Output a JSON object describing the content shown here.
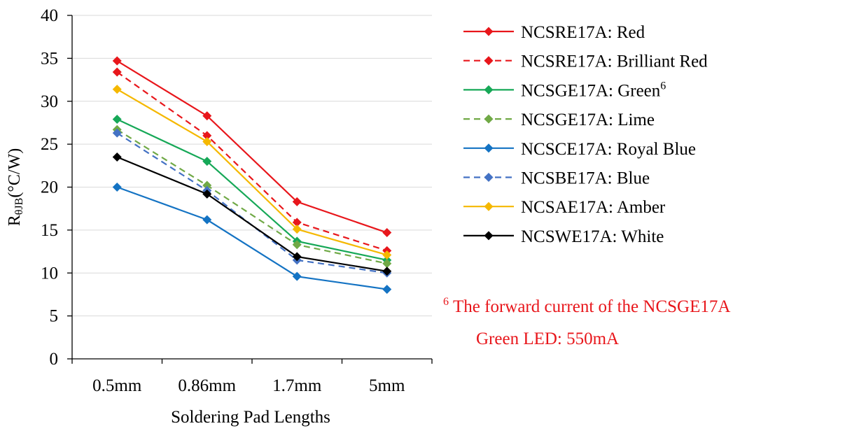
{
  "chart_data": {
    "type": "line",
    "xlabel": "Soldering Pad Lengths",
    "ylabel_main": "R",
    "ylabel_sub": "θJB",
    "ylabel_unit": "(°C/W)",
    "categories": [
      "0.5mm",
      "0.86mm",
      "1.7mm",
      "5mm"
    ],
    "ylim": [
      0,
      40
    ],
    "yticks": [
      0,
      5,
      10,
      15,
      20,
      25,
      30,
      35,
      40
    ],
    "grid": true,
    "legend_position": "right",
    "series": [
      {
        "name": "NCSRE17A: Red",
        "superscript": "",
        "color": "#e8161b",
        "dashed": false,
        "values": [
          34.7,
          28.3,
          18.3,
          14.7
        ]
      },
      {
        "name": "NCSRE17A: Brilliant Red",
        "superscript": "",
        "color": "#e8161b",
        "dashed": true,
        "values": [
          33.4,
          26.0,
          15.9,
          12.6
        ]
      },
      {
        "name": "NCSGE17A: Green",
        "superscript": "6",
        "color": "#16a857",
        "dashed": false,
        "values": [
          27.9,
          23.0,
          13.7,
          11.5
        ]
      },
      {
        "name": "NCSGE17A: Lime",
        "superscript": "",
        "color": "#70a946",
        "dashed": true,
        "values": [
          26.7,
          20.2,
          13.3,
          11.1
        ]
      },
      {
        "name": "NCSCE17A: Royal Blue",
        "superscript": "",
        "color": "#1473c3",
        "dashed": false,
        "values": [
          20.0,
          16.2,
          9.6,
          8.1
        ]
      },
      {
        "name": "NCSBE17A: Blue",
        "superscript": "",
        "color": "#4472c4",
        "dashed": true,
        "values": [
          26.3,
          19.6,
          11.5,
          10.0
        ]
      },
      {
        "name": "NCSAE17A: Amber",
        "superscript": "",
        "color": "#f5b800",
        "dashed": false,
        "values": [
          31.4,
          25.3,
          15.1,
          12.1
        ]
      },
      {
        "name": "NCSWE17A: White",
        "superscript": "",
        "color": "#000000",
        "dashed": false,
        "values": [
          23.5,
          19.2,
          11.9,
          10.2
        ]
      }
    ],
    "footnote": {
      "marker": "6",
      "line1": "The forward current of the NCSGE17A",
      "line2": "Green LED: 550mA",
      "color": "#e8161b"
    }
  }
}
